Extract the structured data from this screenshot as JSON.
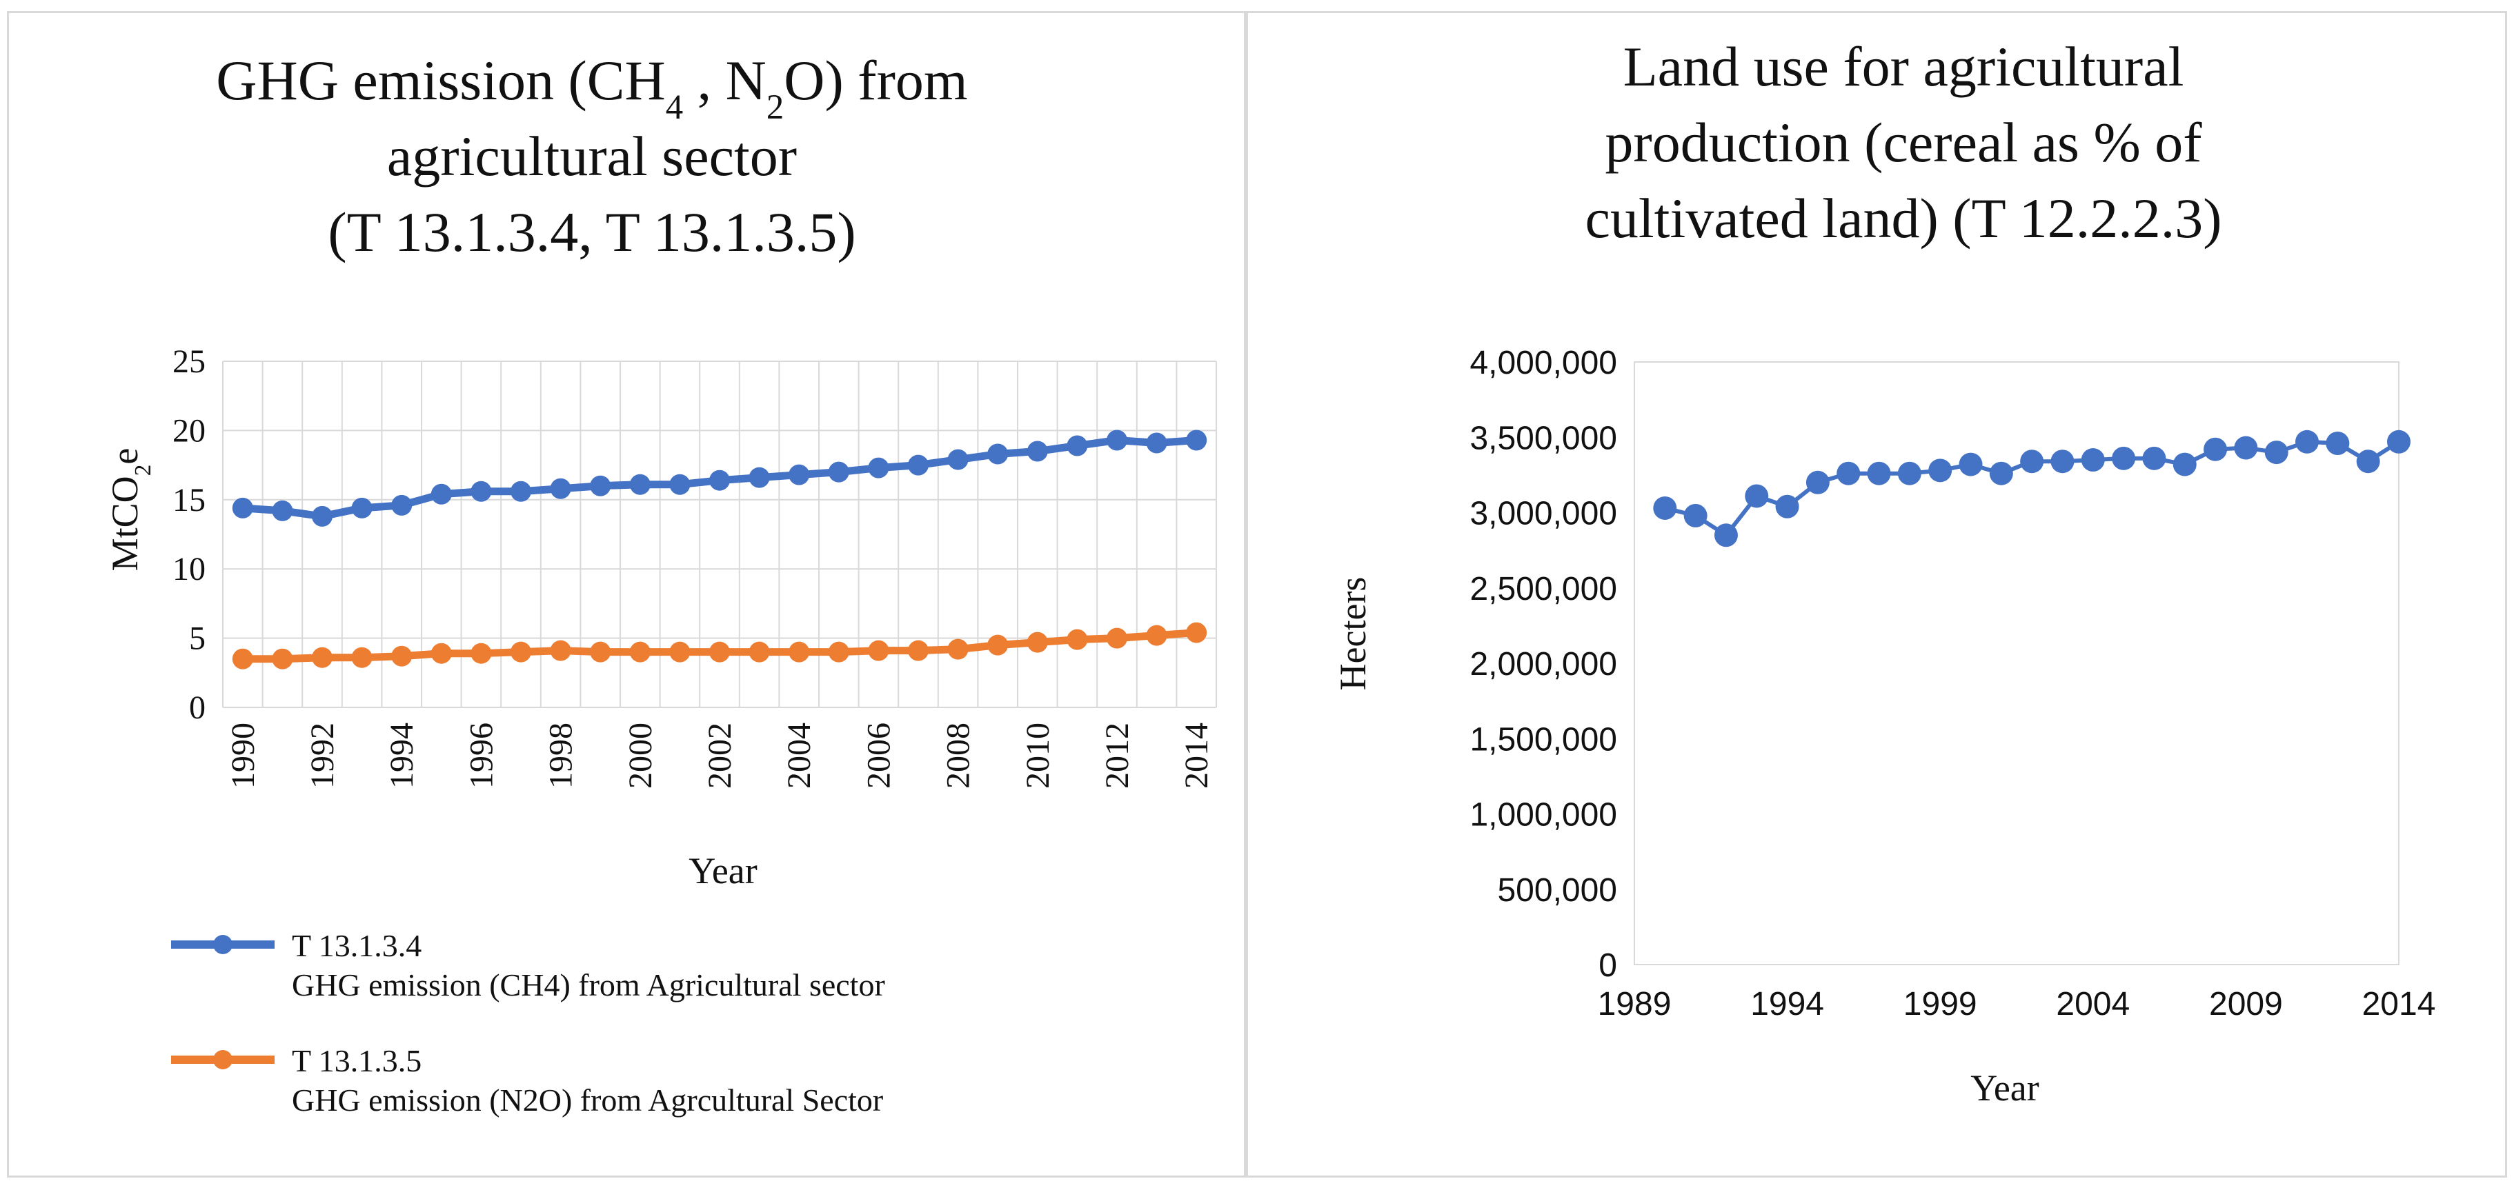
{
  "chart_data": [
    {
      "type": "line",
      "title": {
        "parts": [
          {
            "t": "GHG emission (CH"
          },
          {
            "t": "4",
            "sub": true
          },
          {
            "t": "  , N"
          },
          {
            "t": "2",
            "sub": true
          },
          {
            "t": "O) from"
          }
        ],
        "line2": "agricultural sector",
        "line3": "(T 13.1.3.4, T 13.1.3.5)"
      },
      "xlabel": "Year",
      "ylabel": {
        "parts": [
          {
            "t": "MtCO"
          },
          {
            "t": "2",
            "sub": true
          },
          {
            "t": "e"
          }
        ]
      },
      "ylim": [
        0,
        25
      ],
      "yticks": [
        "0",
        "5",
        "10",
        "15",
        "20",
        "25"
      ],
      "x": [
        1990,
        1991,
        1992,
        1993,
        1994,
        1995,
        1996,
        1997,
        1998,
        1999,
        2000,
        2001,
        2002,
        2003,
        2004,
        2005,
        2006,
        2007,
        2008,
        2009,
        2010,
        2011,
        2012,
        2013,
        2014
      ],
      "xtick_labels": [
        "1990",
        "1992",
        "1994",
        "1996",
        "1998",
        "2000",
        "2002",
        "2004",
        "2006",
        "2008",
        "2010",
        "2012",
        "2014"
      ],
      "grid": true,
      "legend_position": "bottom",
      "series": [
        {
          "name_line1": "T 13.1.3.4",
          "name_line2": "GHG emission (CH4) from Agricultural sector",
          "color": "#4472C4",
          "values": [
            14.4,
            14.2,
            13.8,
            14.4,
            14.6,
            15.4,
            15.6,
            15.6,
            15.8,
            16.0,
            16.1,
            16.1,
            16.4,
            16.6,
            16.8,
            17.0,
            17.3,
            17.5,
            17.9,
            18.3,
            18.5,
            18.9,
            19.3,
            19.1,
            19.3
          ]
        },
        {
          "name_line1": "T 13.1.3.5",
          "name_line2": "GHG emission (N2O) from Agrcultural Sector",
          "color": "#ED7D31",
          "values": [
            3.5,
            3.5,
            3.6,
            3.6,
            3.7,
            3.9,
            3.9,
            4.0,
            4.1,
            4.0,
            4.0,
            4.0,
            4.0,
            4.0,
            4.0,
            4.0,
            4.1,
            4.1,
            4.2,
            4.5,
            4.7,
            4.9,
            5.0,
            5.2,
            5.4
          ]
        }
      ]
    },
    {
      "type": "scatter",
      "title": {
        "line1": "Land use for agricultural",
        "line2": "production (cereal as % of",
        "line3": "cultivated land) (T 12.2.2.3)"
      },
      "xlabel": "Year",
      "ylabel": "Hecters",
      "ylim": [
        0,
        4000000
      ],
      "yticks": [
        "0",
        "500,000",
        "1,000,000",
        "1,500,000",
        "2,000,000",
        "2,500,000",
        "3,000,000",
        "3,500,000",
        "4,000,000"
      ],
      "xlim": [
        1989,
        2014
      ],
      "xtick_labels": [
        "1989",
        "1994",
        "1999",
        "2004",
        "2009",
        "2014"
      ],
      "grid": false,
      "color": "#4472C4",
      "x": [
        1990,
        1991,
        1992,
        1993,
        1994,
        1995,
        1996,
        1997,
        1998,
        1999,
        2000,
        2001,
        2002,
        2003,
        2004,
        2005,
        2006,
        2007,
        2008,
        2009,
        2010,
        2011,
        2012,
        2013,
        2014
      ],
      "values": [
        3030000,
        2980000,
        2850000,
        3110000,
        3040000,
        3200000,
        3260000,
        3260000,
        3260000,
        3280000,
        3320000,
        3260000,
        3340000,
        3340000,
        3350000,
        3360000,
        3360000,
        3320000,
        3420000,
        3430000,
        3400000,
        3470000,
        3460000,
        3340000,
        3470000
      ]
    }
  ]
}
